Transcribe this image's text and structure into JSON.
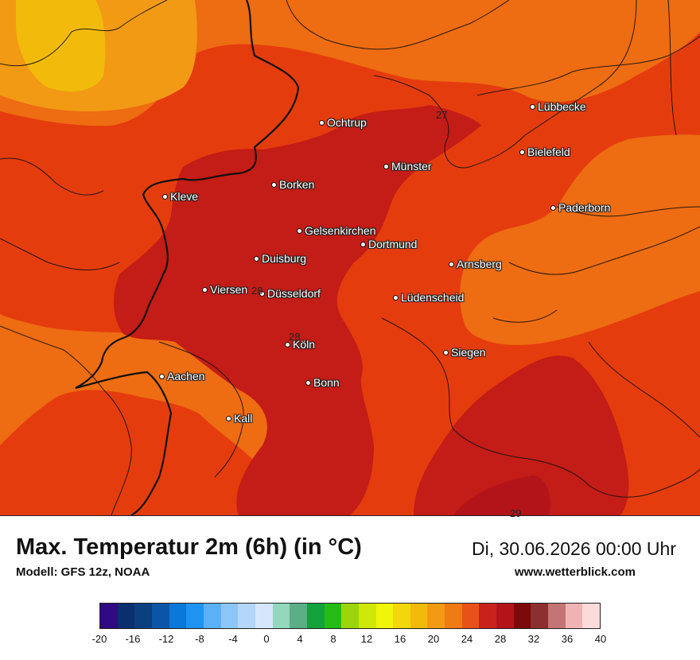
{
  "title": "Max. Temperatur 2m (6h) (in °C)",
  "datetime": "Di, 30.06.2026 00:00 Uhr",
  "model": "Modell: GFS 12z, NOAA",
  "website": "www.wetterblick.com",
  "cities": [
    {
      "name": "Lübbecke"
    },
    {
      "name": "Ochtrup"
    },
    {
      "name": "Bielefeld"
    },
    {
      "name": "Münster"
    },
    {
      "name": "Borken"
    },
    {
      "name": "Kleve"
    },
    {
      "name": "Paderborn"
    },
    {
      "name": "Gelsenkirchen"
    },
    {
      "name": "Dortmund"
    },
    {
      "name": "Duisburg"
    },
    {
      "name": "Arnsberg"
    },
    {
      "name": "Viersen"
    },
    {
      "name": "Düsseldorf"
    },
    {
      "name": "Lüdenscheid"
    },
    {
      "name": "Köln"
    },
    {
      "name": "Siegen"
    },
    {
      "name": "Aachen"
    },
    {
      "name": "Bonn"
    },
    {
      "name": "Kall"
    }
  ],
  "contour_labels": [
    "27",
    "28",
    "28",
    "29"
  ],
  "legend": {
    "ticks": [
      "-20",
      "-16",
      "-12",
      "-8",
      "-4",
      "0",
      "4",
      "8",
      "12",
      "16",
      "20",
      "24",
      "28",
      "32",
      "36",
      "40"
    ],
    "colors": [
      "#2f0a80",
      "#0a2e6e",
      "#0a3f80",
      "#0a55a8",
      "#0a78d8",
      "#1f93f2",
      "#5cb0f7",
      "#8cc5f7",
      "#b3d6f9",
      "#d6e6fb",
      "#93d8bd",
      "#5cae86",
      "#13a23c",
      "#26bb14",
      "#9bd60c",
      "#cfe80a",
      "#f0f50a",
      "#f3d70a",
      "#f2bb0c",
      "#f29a14",
      "#f07a14",
      "#e8521a",
      "#c9221a",
      "#b3141a",
      "#7d0a0a",
      "#8c2f2f",
      "#c47474",
      "#f0b3b3",
      "#fbdada"
    ]
  }
}
